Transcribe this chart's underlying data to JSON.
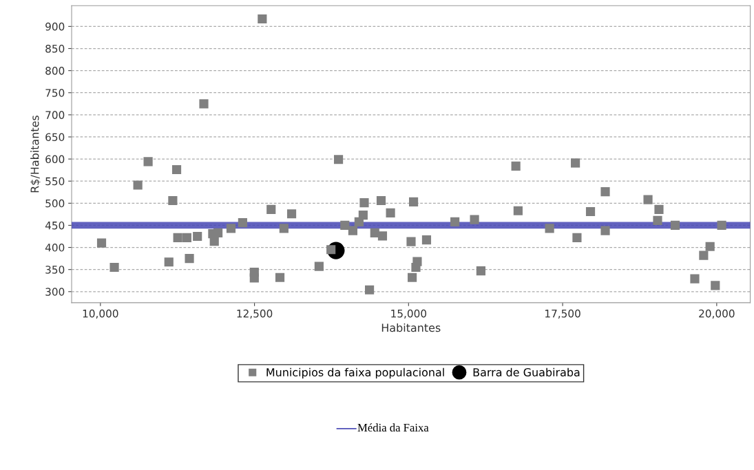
{
  "chart_data": {
    "type": "scatter",
    "xlabel": "Habitantes",
    "ylabel": "R$/Habitantes",
    "xlim": [
      9533,
      20544
    ],
    "ylim": [
      275,
      947
    ],
    "xticks": [
      {
        "value": 10000,
        "label": "10,000"
      },
      {
        "value": 12500,
        "label": "12,500"
      },
      {
        "value": 15000,
        "label": "15,000"
      },
      {
        "value": 17500,
        "label": "17,500"
      },
      {
        "value": 20000,
        "label": "20,000"
      }
    ],
    "yticks": [
      300,
      350,
      400,
      450,
      500,
      550,
      600,
      650,
      700,
      750,
      800,
      850,
      900
    ],
    "grid": "y",
    "legend": "bottom",
    "series": [
      {
        "name": "Municipios da faixa populacional",
        "color": "#808080",
        "marker": "square",
        "x": [
          12626,
          11678,
          10774,
          11237,
          10607,
          11174,
          12770,
          13103,
          12308,
          12119,
          12978,
          10019,
          11255,
          11403,
          11574,
          11822,
          11908,
          11848,
          10226,
          11111,
          11444,
          12497,
          12497,
          12913,
          13863,
          16741,
          14281,
          14555,
          15081,
          16777,
          14707,
          14263,
          14196,
          13966,
          15752,
          16070,
          14096,
          14452,
          14577,
          15041,
          15292,
          13741,
          13548,
          15141,
          15119,
          15059,
          16174,
          14366,
          17707,
          18192,
          18885,
          17952,
          19063,
          19041,
          19326,
          20081,
          17288,
          18192,
          17733,
          19892,
          19788,
          19644,
          19977
        ],
        "values": [
          917,
          725,
          594,
          576,
          541,
          506,
          486,
          476,
          456,
          443,
          443,
          410,
          422,
          422,
          425,
          431,
          433,
          414,
          355,
          367,
          375,
          344,
          331,
          332,
          599,
          584,
          501,
          506,
          503,
          483,
          478,
          473,
          458,
          450,
          458,
          463,
          438,
          433,
          426,
          413,
          417,
          395,
          357,
          368,
          355,
          332,
          347,
          304,
          591,
          526,
          508,
          481,
          486,
          461,
          450,
          450,
          443,
          438,
          422,
          402,
          382,
          329,
          314
        ]
      },
      {
        "name": "Barra de Guabiraba",
        "color": "#000000",
        "marker": "circle",
        "x": [
          13822
        ],
        "values": [
          393
        ]
      }
    ],
    "ref_lines": [
      {
        "axis": "y",
        "value": 450,
        "label": "Média da Faixa",
        "color": "#4646b4"
      }
    ]
  }
}
